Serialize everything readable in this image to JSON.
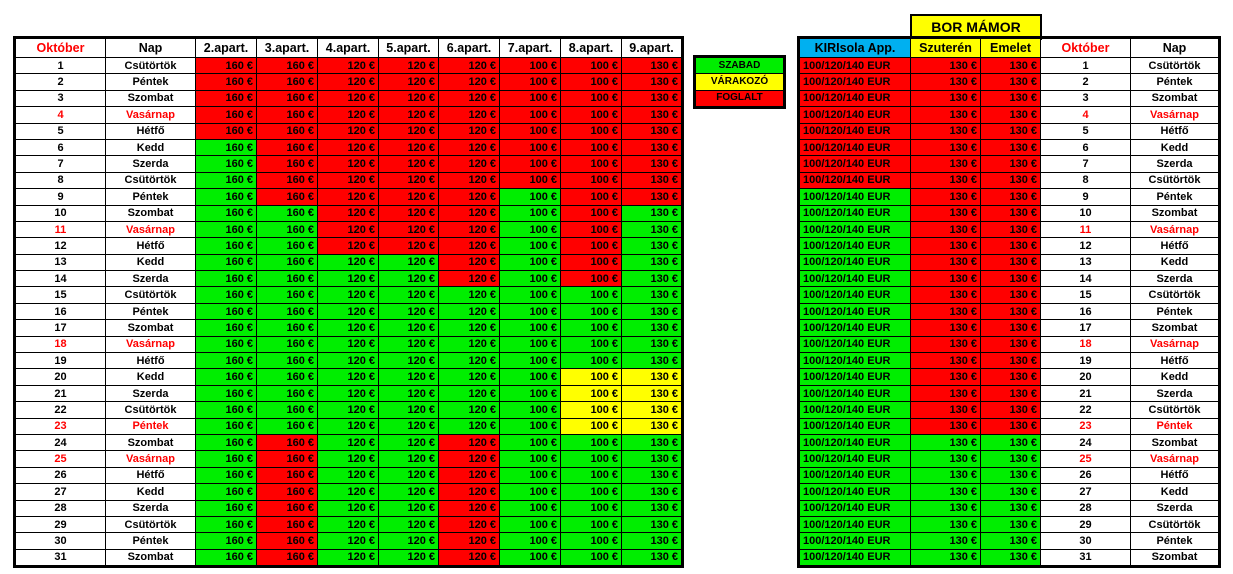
{
  "palette": {
    "G": "#00ee00",
    "R": "#ff0000",
    "Y": "#ffff00",
    "holiday": "#ff0000",
    "header_blue": "#00b0f0"
  },
  "left_table": {
    "headers": [
      "Október",
      "Nap",
      "2.apart.",
      "3.apart.",
      "4.apart.",
      "5.apart.",
      "6.apart.",
      "7.apart.",
      "8.apart.",
      "9.apart."
    ],
    "rows": [
      {
        "cells": [
          "1",
          "Csütörtök",
          "160 €",
          "160 €",
          "120 €",
          "120 €",
          "120 €",
          "100 €",
          "100 €",
          "130 €"
        ],
        "status": "RRRRRRRR"
      },
      {
        "cells": [
          "2",
          "Péntek",
          "160 €",
          "160 €",
          "120 €",
          "120 €",
          "120 €",
          "100 €",
          "100 €",
          "130 €"
        ],
        "status": "RRRRRRRR"
      },
      {
        "cells": [
          "3",
          "Szombat",
          "160 €",
          "160 €",
          "120 €",
          "120 €",
          "120 €",
          "100 €",
          "100 €",
          "130 €"
        ],
        "status": "RRRRRRRR"
      },
      {
        "cells": [
          "4",
          "Vasárnap",
          "160 €",
          "160 €",
          "120 €",
          "120 €",
          "120 €",
          "100 €",
          "100 €",
          "130 €"
        ],
        "status": "RRRRRRRR",
        "holiday": true
      },
      {
        "cells": [
          "5",
          "Hétfő",
          "160 €",
          "160 €",
          "120 €",
          "120 €",
          "120 €",
          "100 €",
          "100 €",
          "130 €"
        ],
        "status": "RRRRRRRR"
      },
      {
        "cells": [
          "6",
          "Kedd",
          "160 €",
          "160 €",
          "120 €",
          "120 €",
          "120 €",
          "100 €",
          "100 €",
          "130 €"
        ],
        "status": "GRRRRRRR"
      },
      {
        "cells": [
          "7",
          "Szerda",
          "160 €",
          "160 €",
          "120 €",
          "120 €",
          "120 €",
          "100 €",
          "100 €",
          "130 €"
        ],
        "status": "GRRRRRRR"
      },
      {
        "cells": [
          "8",
          "Csütörtök",
          "160 €",
          "160 €",
          "120 €",
          "120 €",
          "120 €",
          "100 €",
          "100 €",
          "130 €"
        ],
        "status": "GRRRRRRR"
      },
      {
        "cells": [
          "9",
          "Péntek",
          "160 €",
          "160 €",
          "120 €",
          "120 €",
          "120 €",
          "100 €",
          "100 €",
          "130 €"
        ],
        "status": "GRRRRGRR"
      },
      {
        "cells": [
          "10",
          "Szombat",
          "160 €",
          "160 €",
          "120 €",
          "120 €",
          "120 €",
          "100 €",
          "100 €",
          "130 €"
        ],
        "status": "GGRRRGRG"
      },
      {
        "cells": [
          "11",
          "Vasárnap",
          "160 €",
          "160 €",
          "120 €",
          "120 €",
          "120 €",
          "100 €",
          "100 €",
          "130 €"
        ],
        "status": "GGRRRGRG",
        "holiday": true
      },
      {
        "cells": [
          "12",
          "Hétfő",
          "160 €",
          "160 €",
          "120 €",
          "120 €",
          "120 €",
          "100 €",
          "100 €",
          "130 €"
        ],
        "status": "GGRRRGRG"
      },
      {
        "cells": [
          "13",
          "Kedd",
          "160 €",
          "160 €",
          "120 €",
          "120 €",
          "120 €",
          "100 €",
          "100 €",
          "130 €"
        ],
        "status": "GGGGRGRG"
      },
      {
        "cells": [
          "14",
          "Szerda",
          "160 €",
          "160 €",
          "120 €",
          "120 €",
          "120 €",
          "100 €",
          "100 €",
          "130 €"
        ],
        "status": "GGGGRGRG"
      },
      {
        "cells": [
          "15",
          "Csütörtök",
          "160 €",
          "160 €",
          "120 €",
          "120 €",
          "120 €",
          "100 €",
          "100 €",
          "130 €"
        ],
        "status": "GGGGGGGG"
      },
      {
        "cells": [
          "16",
          "Péntek",
          "160 €",
          "160 €",
          "120 €",
          "120 €",
          "120 €",
          "100 €",
          "100 €",
          "130 €"
        ],
        "status": "GGGGGGGG"
      },
      {
        "cells": [
          "17",
          "Szombat",
          "160 €",
          "160 €",
          "120 €",
          "120 €",
          "120 €",
          "100 €",
          "100 €",
          "130 €"
        ],
        "status": "GGGGGGGG"
      },
      {
        "cells": [
          "18",
          "Vasárnap",
          "160 €",
          "160 €",
          "120 €",
          "120 €",
          "120 €",
          "100 €",
          "100 €",
          "130 €"
        ],
        "status": "GGGGGGGG",
        "holiday": true
      },
      {
        "cells": [
          "19",
          "Hétfő",
          "160 €",
          "160 €",
          "120 €",
          "120 €",
          "120 €",
          "100 €",
          "100 €",
          "130 €"
        ],
        "status": "GGGGGGGG"
      },
      {
        "cells": [
          "20",
          "Kedd",
          "160 €",
          "160 €",
          "120 €",
          "120 €",
          "120 €",
          "100 €",
          "100 €",
          "130 €"
        ],
        "status": "GGGGGGYY"
      },
      {
        "cells": [
          "21",
          "Szerda",
          "160 €",
          "160 €",
          "120 €",
          "120 €",
          "120 €",
          "100 €",
          "100 €",
          "130 €"
        ],
        "status": "GGGGGGYY"
      },
      {
        "cells": [
          "22",
          "Csütörtök",
          "160 €",
          "160 €",
          "120 €",
          "120 €",
          "120 €",
          "100 €",
          "100 €",
          "130 €"
        ],
        "status": "GGGGGGYY"
      },
      {
        "cells": [
          "23",
          "Péntek",
          "160 €",
          "160 €",
          "120 €",
          "120 €",
          "120 €",
          "100 €",
          "100 €",
          "130 €"
        ],
        "status": "GGGGGGYY",
        "holiday": true
      },
      {
        "cells": [
          "24",
          "Szombat",
          "160 €",
          "160 €",
          "120 €",
          "120 €",
          "120 €",
          "100 €",
          "100 €",
          "130 €"
        ],
        "status": "GRGGRGGG"
      },
      {
        "cells": [
          "25",
          "Vasárnap",
          "160 €",
          "160 €",
          "120 €",
          "120 €",
          "120 €",
          "100 €",
          "100 €",
          "130 €"
        ],
        "status": "GRGGRGGG",
        "holiday": true
      },
      {
        "cells": [
          "26",
          "Hétfő",
          "160 €",
          "160 €",
          "120 €",
          "120 €",
          "120 €",
          "100 €",
          "100 €",
          "130 €"
        ],
        "status": "GRGGRGGG"
      },
      {
        "cells": [
          "27",
          "Kedd",
          "160 €",
          "160 €",
          "120 €",
          "120 €",
          "120 €",
          "100 €",
          "100 €",
          "130 €"
        ],
        "status": "GRGGRGGG"
      },
      {
        "cells": [
          "28",
          "Szerda",
          "160 €",
          "160 €",
          "120 €",
          "120 €",
          "120 €",
          "100 €",
          "100 €",
          "130 €"
        ],
        "status": "GRGGRGGG"
      },
      {
        "cells": [
          "29",
          "Csütörtök",
          "160 €",
          "160 €",
          "120 €",
          "120 €",
          "120 €",
          "100 €",
          "100 €",
          "130 €"
        ],
        "status": "GRGGRGGG"
      },
      {
        "cells": [
          "30",
          "Péntek",
          "160 €",
          "160 €",
          "120 €",
          "120 €",
          "120 €",
          "100 €",
          "100 €",
          "130 €"
        ],
        "status": "GRGGRGGG"
      },
      {
        "cells": [
          "31",
          "Szombat",
          "160 €",
          "160 €",
          "120 €",
          "120 €",
          "120 €",
          "100 €",
          "100 €",
          "130 €"
        ],
        "status": "GRGGRGGG"
      }
    ]
  },
  "legend": [
    {
      "label": "SZABAD",
      "status": "G"
    },
    {
      "label": "VÁRAKOZÓ",
      "status": "Y"
    },
    {
      "label": "FOGLALT",
      "status": "R"
    }
  ],
  "right_table": {
    "group_header": "BOR  MÁMOR",
    "headers": [
      "KIRIsola App.",
      "Szuterén",
      "Emelet",
      "Október",
      "Nap"
    ],
    "rows": [
      {
        "cells": [
          "100/120/140 EUR",
          "130 €",
          "130 €"
        ],
        "status": "RRR"
      },
      {
        "cells": [
          "100/120/140 EUR",
          "130 €",
          "130 €"
        ],
        "status": "RRR"
      },
      {
        "cells": [
          "100/120/140 EUR",
          "130 €",
          "130 €"
        ],
        "status": "RRR"
      },
      {
        "cells": [
          "100/120/140 EUR",
          "130 €",
          "130 €"
        ],
        "status": "RRR"
      },
      {
        "cells": [
          "100/120/140 EUR",
          "130 €",
          "130 €"
        ],
        "status": "RRR"
      },
      {
        "cells": [
          "100/120/140 EUR",
          "130 €",
          "130 €"
        ],
        "status": "RRR"
      },
      {
        "cells": [
          "100/120/140 EUR",
          "130 €",
          "130 €"
        ],
        "status": "RRR"
      },
      {
        "cells": [
          "100/120/140 EUR",
          "130 €",
          "130 €"
        ],
        "status": "RRR"
      },
      {
        "cells": [
          "100/120/140 EUR",
          "130 €",
          "130 €"
        ],
        "status": "GRR"
      },
      {
        "cells": [
          "100/120/140 EUR",
          "130 €",
          "130 €"
        ],
        "status": "GRR"
      },
      {
        "cells": [
          "100/120/140 EUR",
          "130 €",
          "130 €"
        ],
        "status": "GRR"
      },
      {
        "cells": [
          "100/120/140 EUR",
          "130 €",
          "130 €"
        ],
        "status": "GRR"
      },
      {
        "cells": [
          "100/120/140 EUR",
          "130 €",
          "130 €"
        ],
        "status": "GRR"
      },
      {
        "cells": [
          "100/120/140 EUR",
          "130 €",
          "130 €"
        ],
        "status": "GRR"
      },
      {
        "cells": [
          "100/120/140 EUR",
          "130 €",
          "130 €"
        ],
        "status": "GRR"
      },
      {
        "cells": [
          "100/120/140 EUR",
          "130 €",
          "130 €"
        ],
        "status": "GRR"
      },
      {
        "cells": [
          "100/120/140 EUR",
          "130 €",
          "130 €"
        ],
        "status": "GRR"
      },
      {
        "cells": [
          "100/120/140 EUR",
          "130 €",
          "130 €"
        ],
        "status": "GRR"
      },
      {
        "cells": [
          "100/120/140 EUR",
          "130 €",
          "130 €"
        ],
        "status": "GRR"
      },
      {
        "cells": [
          "100/120/140 EUR",
          "130 €",
          "130 €"
        ],
        "status": "GRR"
      },
      {
        "cells": [
          "100/120/140 EUR",
          "130 €",
          "130 €"
        ],
        "status": "GRR"
      },
      {
        "cells": [
          "100/120/140 EUR",
          "130 €",
          "130 €"
        ],
        "status": "GRR"
      },
      {
        "cells": [
          "100/120/140 EUR",
          "130 €",
          "130 €"
        ],
        "status": "GRR"
      },
      {
        "cells": [
          "100/120/140 EUR",
          "130 €",
          "130 €"
        ],
        "status": "GGG"
      },
      {
        "cells": [
          "100/120/140 EUR",
          "130 €",
          "130 €"
        ],
        "status": "GGG"
      },
      {
        "cells": [
          "100/120/140 EUR",
          "130 €",
          "130 €"
        ],
        "status": "GGG"
      },
      {
        "cells": [
          "100/120/140 EUR",
          "130 €",
          "130 €"
        ],
        "status": "GGG"
      },
      {
        "cells": [
          "100/120/140 EUR",
          "130 €",
          "130 €"
        ],
        "status": "GGG"
      },
      {
        "cells": [
          "100/120/140 EUR",
          "130 €",
          "130 €"
        ],
        "status": "GGG"
      },
      {
        "cells": [
          "100/120/140 EUR",
          "130 €",
          "130 €"
        ],
        "status": "GGG"
      },
      {
        "cells": [
          "100/120/140 EUR",
          "130 €",
          "130 €"
        ],
        "status": "GGG"
      }
    ]
  }
}
